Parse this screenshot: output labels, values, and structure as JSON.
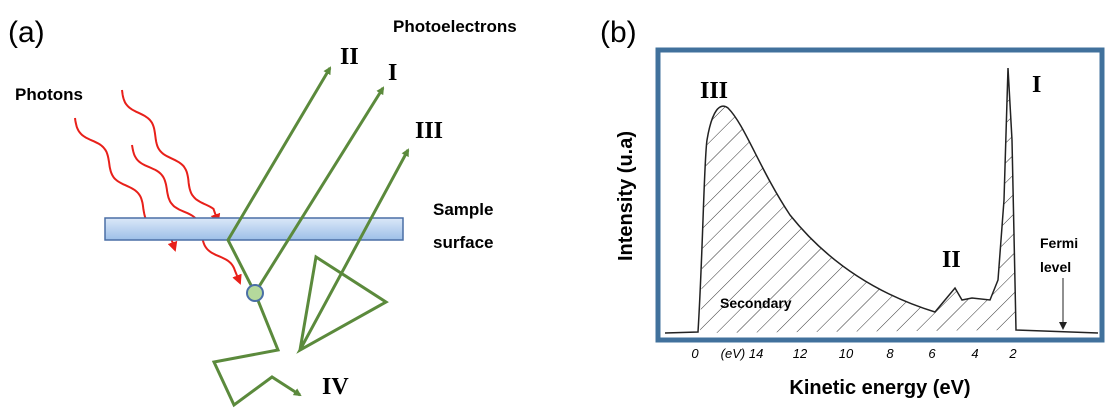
{
  "panel_a": {
    "label": "(a)",
    "photoelectrons": "Photoelectrons",
    "photons": "Photons",
    "electron_labels": [
      "II",
      "I",
      "III",
      "IV"
    ],
    "sample_surface": [
      "Sample",
      "surface"
    ]
  },
  "panel_b": {
    "label": "(b)",
    "y_axis_title": "Intensity (u.a)",
    "x_axis_title": "Kinetic energy (eV)",
    "peak_labels": [
      "III",
      "I",
      "II"
    ],
    "region_label": "Secondary",
    "fermi_level": [
      "Fermi",
      "level"
    ],
    "x_tick_labels": [
      "0",
      "(eV) 14",
      "12",
      "10",
      "8",
      "6",
      "4",
      "2"
    ]
  }
}
